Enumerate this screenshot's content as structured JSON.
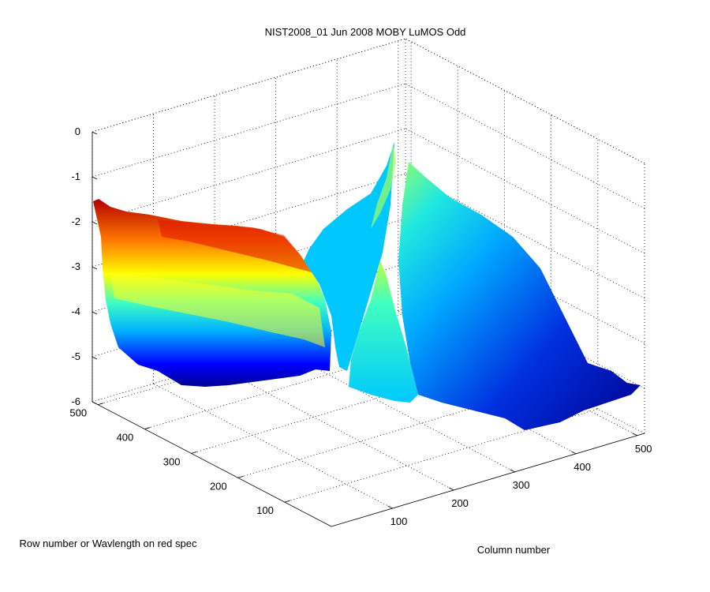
{
  "chart_data": {
    "type": "surface",
    "title": "NIST2008_01 Jun 2008 MOBY LuMOS Odd",
    "xlabel": "Column number",
    "ylabel": "Row number or Wavlength on red spec",
    "zlabel": "",
    "xlim": [
      0,
      512
    ],
    "ylim": [
      0,
      512
    ],
    "zlim": [
      -6,
      0
    ],
    "x_ticks": [
      "100",
      "200",
      "300",
      "400",
      "500"
    ],
    "y_ticks": [
      "100",
      "200",
      "300",
      "400",
      "500"
    ],
    "z_ticks": [
      "0",
      "-1",
      "-2",
      "-3",
      "-4",
      "-5",
      "-6"
    ],
    "x_tick_values": [
      100,
      200,
      300,
      400,
      500
    ],
    "y_tick_values": [
      100,
      200,
      300,
      400,
      500
    ],
    "z_tick_values": [
      0,
      -1,
      -2,
      -3,
      -4,
      -5,
      -6
    ],
    "colormap": "jet",
    "grid": true,
    "regions": [
      {
        "name": "left block (columns near 0, all rows)",
        "edge_front_y0": [
          -1.8,
          -2.9,
          -4.0,
          -4.9
        ],
        "edge_back_y512": [
          -1.5,
          -2.6,
          -3.5,
          -4.6
        ],
        "max_value": -1.5
      },
      {
        "name": "central peak (columns near 250-300)",
        "peak_value": -0.2
      },
      {
        "name": "right slope (columns toward 512)",
        "edge_value_at_corner": -5.9
      }
    ]
  },
  "colors": {
    "background": "#ffffff",
    "colormap_low": "#00008f",
    "colormap_high": "#800000"
  }
}
